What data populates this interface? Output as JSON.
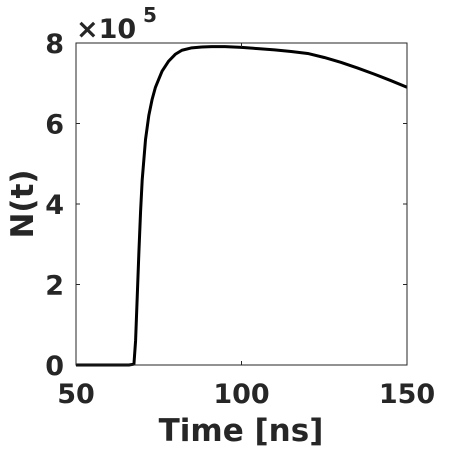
{
  "chart_data": {
    "type": "line",
    "xlabel": "Time [ns]",
    "ylabel": "N(t)",
    "xlim": [
      50,
      150
    ],
    "ylim": [
      0,
      8
    ],
    "xticks": [
      50,
      100,
      150
    ],
    "xtick_labels": [
      "50",
      "100",
      "150"
    ],
    "yticks": [
      0,
      2,
      4,
      6,
      8
    ],
    "ytick_labels": [
      "0",
      "2",
      "4",
      "6",
      "8"
    ],
    "y_multiplier": {
      "base": "×10",
      "exponent": "5"
    },
    "grid": false,
    "series": [
      {
        "color": "#000000",
        "x": [
          50,
          60,
          66,
          67.5,
          68,
          68.5,
          69,
          69.5,
          70,
          71,
          72,
          73,
          74,
          75,
          76,
          78,
          80,
          82,
          85,
          88,
          91,
          95,
          100,
          105,
          110,
          115,
          120,
          125,
          130,
          135,
          140,
          145,
          150
        ],
        "y": [
          0.0,
          0.0,
          0.0,
          0.02,
          0.6,
          1.7,
          2.8,
          3.8,
          4.6,
          5.6,
          6.2,
          6.6,
          6.9,
          7.1,
          7.3,
          7.55,
          7.72,
          7.82,
          7.88,
          7.9,
          7.91,
          7.91,
          7.89,
          7.86,
          7.83,
          7.79,
          7.74,
          7.64,
          7.52,
          7.38,
          7.23,
          7.07,
          6.9
        ]
      }
    ]
  }
}
